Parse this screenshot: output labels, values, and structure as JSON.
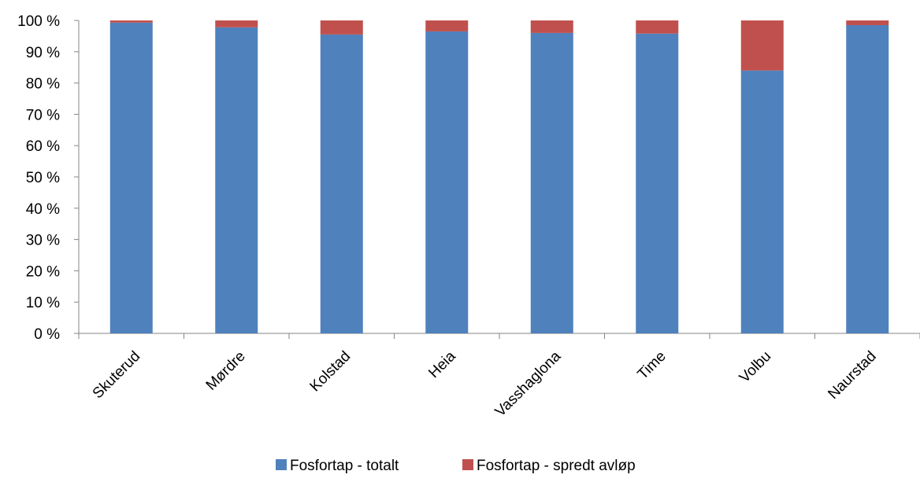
{
  "chart_data": {
    "type": "bar",
    "stacked": true,
    "percent_stacked": true,
    "categories": [
      "Skuterud",
      "Mørdre",
      "Kolstad",
      "Heia",
      "Vasshaglona",
      "Time",
      "Volbu",
      "Naurstad"
    ],
    "series": [
      {
        "name": "Fosfortap - totalt",
        "color": "#4F81BD",
        "values": [
          99.3,
          97.8,
          95.5,
          96.5,
          96.0,
          95.8,
          84.0,
          98.5
        ]
      },
      {
        "name": "Fosfortap - spredt avløp",
        "color": "#C0504D",
        "values": [
          0.7,
          2.2,
          4.5,
          3.5,
          4.0,
          4.2,
          16.0,
          1.5
        ]
      }
    ],
    "ylim": [
      0,
      100
    ],
    "ytick_labels": [
      "0 %",
      "10 %",
      "20 %",
      "30 %",
      "40 %",
      "50 %",
      "60 %",
      "70 %",
      "80 %",
      "90 %",
      "100 %"
    ],
    "grid": false,
    "legend_position": "bottom"
  }
}
